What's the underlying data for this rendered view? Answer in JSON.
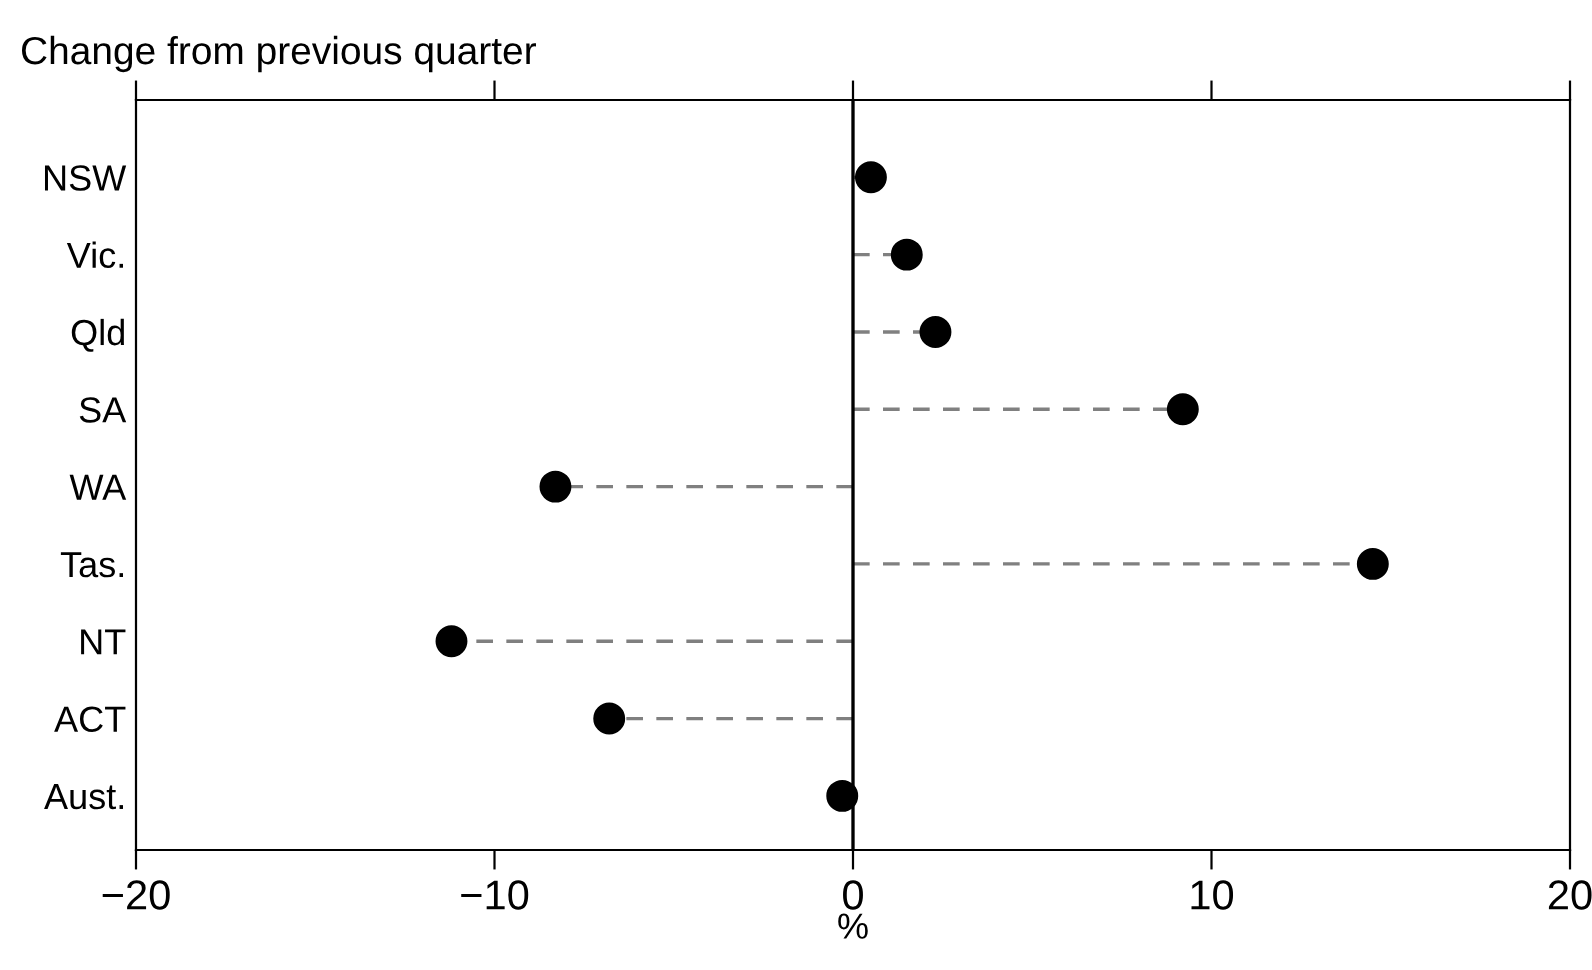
{
  "chart_data": {
    "type": "lollipop",
    "orientation": "horizontal",
    "title": "Change from previous quarter",
    "xlabel": "%",
    "categories": [
      "NSW",
      "Vic.",
      "Qld",
      "SA",
      "WA",
      "Tas.",
      "NT",
      "ACT",
      "Aust."
    ],
    "values": [
      0.5,
      1.5,
      2.3,
      9.2,
      -8.3,
      14.5,
      -11.2,
      -6.8,
      -0.3
    ],
    "color": "#000000",
    "line_style": "dashed",
    "marker": "circle",
    "xlim": [
      -20,
      20
    ],
    "xticks": [
      {
        "value": -20,
        "label": "−20"
      },
      {
        "value": -10,
        "label": "−10"
      },
      0,
      10,
      20
    ],
    "ref_lines": [
      {
        "axis": "x",
        "value": 0,
        "color": "#000000",
        "line_style": "solid"
      }
    ],
    "grid": false,
    "legend": false
  }
}
